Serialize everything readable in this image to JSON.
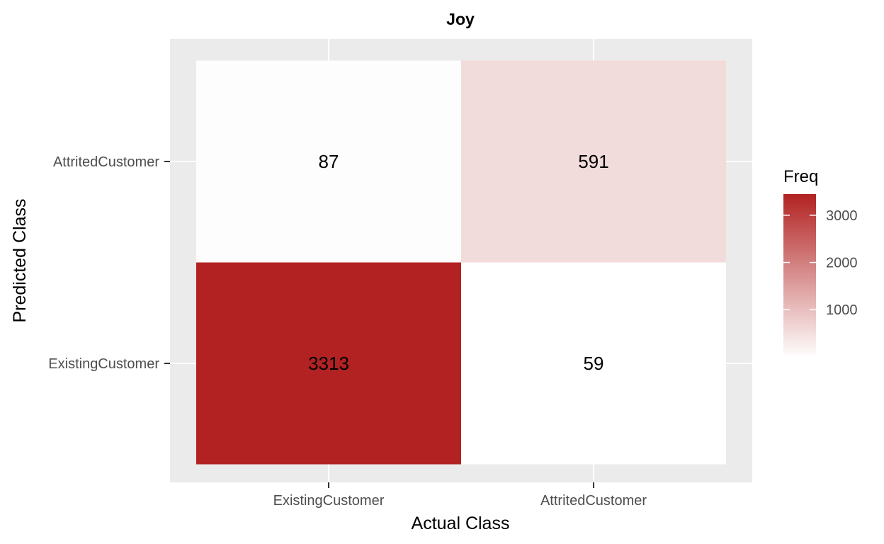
{
  "chart_data": {
    "type": "heatmap",
    "title": "Joy",
    "xlabel": "Actual Class",
    "ylabel": "Predicted Class",
    "x_categories": [
      "ExistingCustomer",
      "AttritedCustomer"
    ],
    "y_categories": [
      "ExistingCustomer",
      "AttritedCustomer"
    ],
    "cells": [
      {
        "x": "ExistingCustomer",
        "y": "AttritedCustomer",
        "value": 87
      },
      {
        "x": "AttritedCustomer",
        "y": "AttritedCustomer",
        "value": 591
      },
      {
        "x": "ExistingCustomer",
        "y": "ExistingCustomer",
        "value": 3313
      },
      {
        "x": "AttritedCustomer",
        "y": "ExistingCustomer",
        "value": 59
      }
    ],
    "legend": {
      "title": "Freq",
      "placement": "right",
      "breaks": [
        1000,
        2000,
        3000
      ],
      "range": [
        59,
        3313
      ],
      "low_color": "#ffffff",
      "high_color": "#b22222"
    },
    "panel_background": "#ebebeb",
    "grid_color": "#ffffff",
    "grid": true
  }
}
